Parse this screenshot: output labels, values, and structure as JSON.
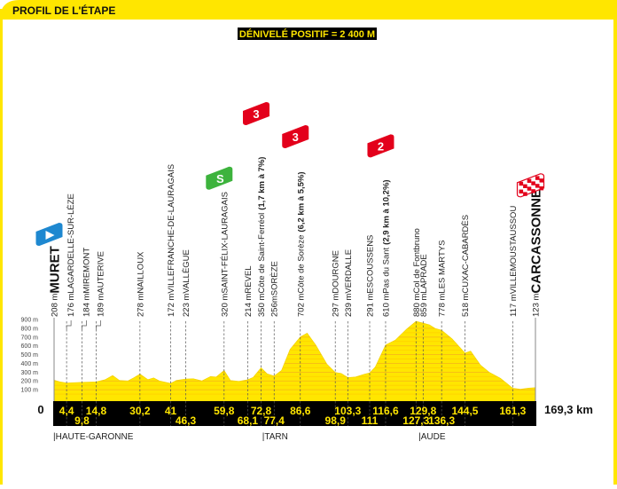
{
  "header": {
    "title": "PROFIL DE L'ÉTAPE",
    "elevation_gain": "DÉNIVELÉ POSITIF = 2 400 M"
  },
  "colors": {
    "yellow": "#ffe600",
    "black": "#000000",
    "start_blue": "#1e88d0",
    "sprint_green": "#3db33d",
    "climb_red": "#e3001b"
  },
  "chart_data": {
    "type": "area",
    "xlabel": "km",
    "ylabel": "m",
    "xlim": [
      0,
      169.3
    ],
    "ylim": [
      0,
      900
    ],
    "y_ticks": [
      "100 m",
      "200 m",
      "300 m",
      "400 m",
      "500 m",
      "600 m",
      "700 m",
      "800 m",
      "900 m"
    ],
    "x_start_label": "0",
    "x_end_label": "169,3 km",
    "profile": [
      [
        0,
        208
      ],
      [
        2,
        190
      ],
      [
        4.4,
        176
      ],
      [
        9.8,
        184
      ],
      [
        14.8,
        189
      ],
      [
        18,
        215
      ],
      [
        20.6,
        262
      ],
      [
        23,
        205
      ],
      [
        26,
        200
      ],
      [
        28,
        235
      ],
      [
        30.2,
        278
      ],
      [
        33,
        215
      ],
      [
        35,
        235
      ],
      [
        37,
        200
      ],
      [
        41,
        172
      ],
      [
        43,
        205
      ],
      [
        46.3,
        223
      ],
      [
        49,
        225
      ],
      [
        52,
        200
      ],
      [
        55,
        250
      ],
      [
        57,
        245
      ],
      [
        59.8,
        320
      ],
      [
        62,
        205
      ],
      [
        65,
        195
      ],
      [
        68.1,
        214
      ],
      [
        70,
        240
      ],
      [
        72.8,
        350
      ],
      [
        75,
        280
      ],
      [
        77.4,
        256
      ],
      [
        80,
        320
      ],
      [
        83,
        560
      ],
      [
        86.6,
        702
      ],
      [
        89,
        745
      ],
      [
        92,
        610
      ],
      [
        96,
        390
      ],
      [
        98.9,
        297
      ],
      [
        101,
        285
      ],
      [
        103.3,
        239
      ],
      [
        106,
        245
      ],
      [
        109,
        275
      ],
      [
        111,
        291
      ],
      [
        113,
        360
      ],
      [
        116.6,
        610
      ],
      [
        120,
        665
      ],
      [
        124,
        790
      ],
      [
        127.3,
        880
      ],
      [
        129.8,
        859
      ],
      [
        132,
        840
      ],
      [
        134,
        800
      ],
      [
        136.3,
        778
      ],
      [
        140,
        680
      ],
      [
        144.5,
        518
      ],
      [
        146.5,
        540
      ],
      [
        150,
        380
      ],
      [
        153,
        300
      ],
      [
        157,
        230
      ],
      [
        161.3,
        117
      ],
      [
        164,
        105
      ],
      [
        167,
        118
      ],
      [
        169.3,
        123
      ]
    ],
    "waypoints": [
      {
        "km": 0,
        "km_label": "",
        "elev": "208 m",
        "name": "MURET",
        "detail": "",
        "bold": true,
        "row": 1,
        "marker": "start"
      },
      {
        "km": 4.4,
        "km_label": "4,4",
        "elev": "176 m",
        "name": "LAGARDELLE-SUR-LÈZE",
        "detail": "",
        "row": 1
      },
      {
        "km": 9.8,
        "km_label": "9,8",
        "elev": "184 m",
        "name": "MIREMONT",
        "detail": "",
        "row": 2
      },
      {
        "km": 14.8,
        "km_label": "14,8",
        "elev": "189 m",
        "name": "AUTERIVE",
        "detail": "",
        "row": 1
      },
      {
        "km": 30.2,
        "km_label": "30,2",
        "elev": "278 m",
        "name": "NAILLOUX",
        "detail": "",
        "row": 1
      },
      {
        "km": 41,
        "km_label": "41",
        "elev": "172 m",
        "name": "VILLEFRANCHE-DE-LAURAGAIS",
        "detail": "",
        "row": 1
      },
      {
        "km": 46.3,
        "km_label": "46,3",
        "elev": "223 m",
        "name": "VALLÈGUE",
        "detail": "",
        "row": 2
      },
      {
        "km": 59.8,
        "km_label": "59,8",
        "elev": "320 m",
        "name": "SAINT-FÉLIX-LAURAGAIS",
        "detail": "",
        "row": 1,
        "marker": "sprint"
      },
      {
        "km": 68.1,
        "km_label": "68,1",
        "elev": "214 m",
        "name": "REVEL",
        "detail": "",
        "row": 2
      },
      {
        "km": 72.8,
        "km_label": "72,8",
        "elev": "350 m",
        "name": "Côte de Saint-Ferréol",
        "detail": "(1,7 km à 7%)",
        "row": 1,
        "marker": "climb",
        "category": "3"
      },
      {
        "km": 77.4,
        "km_label": "77,4",
        "elev": "256m",
        "name": "SORÈZE",
        "detail": "",
        "row": 2
      },
      {
        "km": 86.6,
        "km_label": "86,6",
        "elev": "702 m",
        "name": "Côte de Sorèze",
        "detail": "(6,2 km à 5,5%)",
        "row": 1,
        "marker": "climb",
        "category": "3"
      },
      {
        "km": 98.9,
        "km_label": "98,9",
        "elev": "297 m",
        "name": "DOURGNE",
        "detail": "",
        "row": 2
      },
      {
        "km": 103.3,
        "km_label": "103,3",
        "elev": "239 m",
        "name": "VERDALLE",
        "detail": "",
        "row": 1
      },
      {
        "km": 111,
        "km_label": "111",
        "elev": "291 m",
        "name": "ESCOUSSENS",
        "detail": "",
        "row": 2
      },
      {
        "km": 116.6,
        "km_label": "116,6",
        "elev": "610 m",
        "name": "Pas du Sant",
        "detail": "(2,9 km à 10,2%)",
        "row": 1,
        "marker": "climb",
        "category": "2"
      },
      {
        "km": 127.3,
        "km_label": "127,3",
        "elev": "880 m",
        "name": "Col de Fontbruno",
        "detail": "",
        "row": 2
      },
      {
        "km": 129.8,
        "km_label": "129,8",
        "elev": "859 m",
        "name": "LAPRADE",
        "detail": "",
        "row": 1
      },
      {
        "km": 136.3,
        "km_label": "136,3",
        "elev": "778 m",
        "name": "LES MARTYS",
        "detail": "",
        "row": 2
      },
      {
        "km": 144.5,
        "km_label": "144,5",
        "elev": "518 m",
        "name": "CUXAC-CABARDÈS",
        "detail": "",
        "row": 1
      },
      {
        "km": 161.3,
        "km_label": "161,3",
        "elev": "117 m",
        "name": "VILLEMOUSTAUSSOU",
        "detail": "",
        "row": 1
      },
      {
        "km": 169.3,
        "km_label": "",
        "elev": "123 m",
        "name": "CARCASSONNE",
        "detail": "",
        "bold": true,
        "row": 1,
        "marker": "finish"
      }
    ],
    "regions": [
      {
        "km": 0,
        "label": "|HAUTE-GARONNE"
      },
      {
        "km": 73.5,
        "label": "|TARN"
      },
      {
        "km": 128.5,
        "label": "|AUDE"
      }
    ]
  }
}
